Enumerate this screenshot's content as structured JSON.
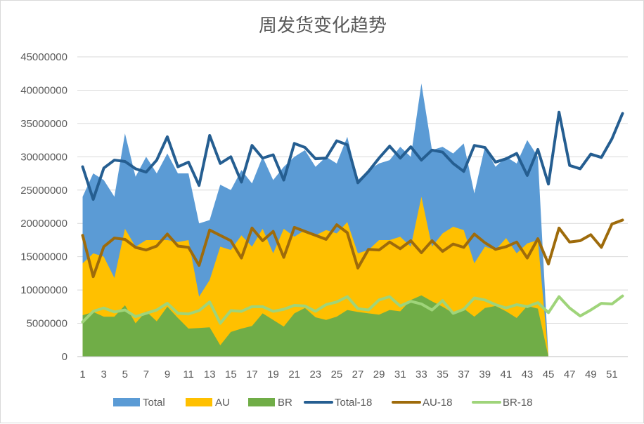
{
  "chart_data": {
    "type": "area",
    "title": "周发货变化趋势",
    "xlabel": "",
    "ylabel": "",
    "ylim": [
      0,
      45000000
    ],
    "ytick_step": 5000000,
    "y_tick_labels": [
      "0",
      "5000000",
      "10000000",
      "15000000",
      "20000000",
      "25000000",
      "30000000",
      "35000000",
      "40000000",
      "45000000"
    ],
    "x": [
      1,
      2,
      3,
      4,
      5,
      6,
      7,
      8,
      9,
      10,
      11,
      12,
      13,
      14,
      15,
      16,
      17,
      18,
      19,
      20,
      21,
      22,
      23,
      24,
      25,
      26,
      27,
      28,
      29,
      30,
      31,
      32,
      33,
      34,
      35,
      36,
      37,
      38,
      39,
      40,
      41,
      42,
      43,
      44,
      45,
      46,
      47,
      48,
      49,
      50,
      51,
      52
    ],
    "x_tick_labels": [
      "1",
      "3",
      "5",
      "7",
      "9",
      "11",
      "13",
      "15",
      "17",
      "19",
      "21",
      "23",
      "25",
      "27",
      "29",
      "31",
      "33",
      "35",
      "37",
      "39",
      "41",
      "43",
      "45",
      "47",
      "49",
      "51"
    ],
    "grid": true,
    "legend_position": "bottom",
    "area_series": [
      {
        "name": "Total",
        "color": "#5b9bd5",
        "values": [
          24000000,
          27500000,
          26500000,
          24000000,
          33500000,
          27000000,
          30000000,
          27500000,
          30500000,
          27500000,
          27500000,
          20000000,
          20500000,
          25800000,
          25000000,
          28000000,
          26000000,
          30000000,
          26500000,
          28500000,
          30000000,
          31000000,
          28500000,
          30000000,
          29000000,
          33000000,
          26500000,
          28000000,
          29000000,
          29500000,
          31500000,
          30000000,
          41000000,
          31000000,
          31500000,
          30500000,
          32000000,
          24500000,
          31500000,
          28500000,
          30000000,
          29000000,
          32500000,
          30000000,
          0
        ]
      },
      {
        "name": "AU",
        "color": "#ffc000",
        "values": [
          14000000,
          15500000,
          15000000,
          11800000,
          19200000,
          16500000,
          17500000,
          17500000,
          17500000,
          17200000,
          17500000,
          9000000,
          11500000,
          16500000,
          16000000,
          18200000,
          16500000,
          19200000,
          15500000,
          19200000,
          18000000,
          19000000,
          18200000,
          19000000,
          18500000,
          20200000,
          15500000,
          16000000,
          17500000,
          17500000,
          18000000,
          16500000,
          24000000,
          16500000,
          18500000,
          19500000,
          19000000,
          14000000,
          16500000,
          16000000,
          17800000,
          15500000,
          17000000,
          17500000,
          0
        ]
      },
      {
        "name": "BR",
        "color": "#70ad47",
        "values": [
          6200000,
          6700000,
          6000000,
          6000000,
          7700000,
          5000000,
          6800000,
          5300000,
          7500000,
          5800000,
          4200000,
          4300000,
          4400000,
          1700000,
          3700000,
          4200000,
          4600000,
          6500000,
          5500000,
          4500000,
          6500000,
          7300000,
          5900000,
          5500000,
          6000000,
          7000000,
          6700000,
          6500000,
          6300000,
          7000000,
          6800000,
          8500000,
          9200000,
          8300000,
          7500000,
          6500000,
          7200000,
          6000000,
          7300000,
          7600000,
          6800000,
          5800000,
          7600000,
          7200000,
          0
        ]
      }
    ],
    "line_series": [
      {
        "name": "Total-18",
        "color": "#255e91",
        "values": [
          28500000,
          23600000,
          28300000,
          29500000,
          29300000,
          28200000,
          27700000,
          29500000,
          33000000,
          28500000,
          29200000,
          25700000,
          33200000,
          29000000,
          30000000,
          26200000,
          31700000,
          29800000,
          30300000,
          26500000,
          32000000,
          31400000,
          29700000,
          29800000,
          32400000,
          31800000,
          26100000,
          27800000,
          29800000,
          31600000,
          29800000,
          31500000,
          29500000,
          31000000,
          30700000,
          29000000,
          27800000,
          31700000,
          31400000,
          29200000,
          29700000,
          30500000,
          27200000,
          31100000,
          25900000,
          36700000,
          28700000,
          28200000,
          30400000,
          29900000,
          32700000,
          36500000
        ]
      },
      {
        "name": "AU-18",
        "color": "#9e6b0b",
        "values": [
          18200000,
          12000000,
          16500000,
          17800000,
          17600000,
          16400000,
          16000000,
          16600000,
          18400000,
          16600000,
          16400000,
          13700000,
          19000000,
          18200000,
          17400000,
          14800000,
          19300000,
          17400000,
          18800000,
          14900000,
          19400000,
          18800000,
          18200000,
          17600000,
          19800000,
          18600000,
          13300000,
          16100000,
          16000000,
          17200000,
          16200000,
          17400000,
          15600000,
          17400000,
          15800000,
          16900000,
          16400000,
          18400000,
          17100000,
          16100000,
          16500000,
          17200000,
          14800000,
          17700000,
          13900000,
          19300000,
          17200000,
          17400000,
          18300000,
          16400000,
          19900000,
          20500000
        ]
      },
      {
        "name": "BR-18",
        "color": "#9fd47a",
        "values": [
          5200000,
          6800000,
          7300000,
          6700000,
          7000000,
          6000000,
          6500000,
          7000000,
          8000000,
          6500000,
          6400000,
          6900000,
          8200000,
          5000000,
          6900000,
          6800000,
          7500000,
          7500000,
          6800000,
          7100000,
          7700000,
          7600000,
          6800000,
          7800000,
          8200000,
          9000000,
          7200000,
          7000000,
          8500000,
          9000000,
          7600000,
          8300000,
          7900000,
          7000000,
          8400000,
          6500000,
          7100000,
          8800000,
          8500000,
          7800000,
          7300000,
          7800000,
          7500000,
          8100000,
          6600000,
          9000000,
          7300000,
          6100000,
          7000000,
          8000000,
          7900000,
          9100000
        ]
      }
    ]
  }
}
